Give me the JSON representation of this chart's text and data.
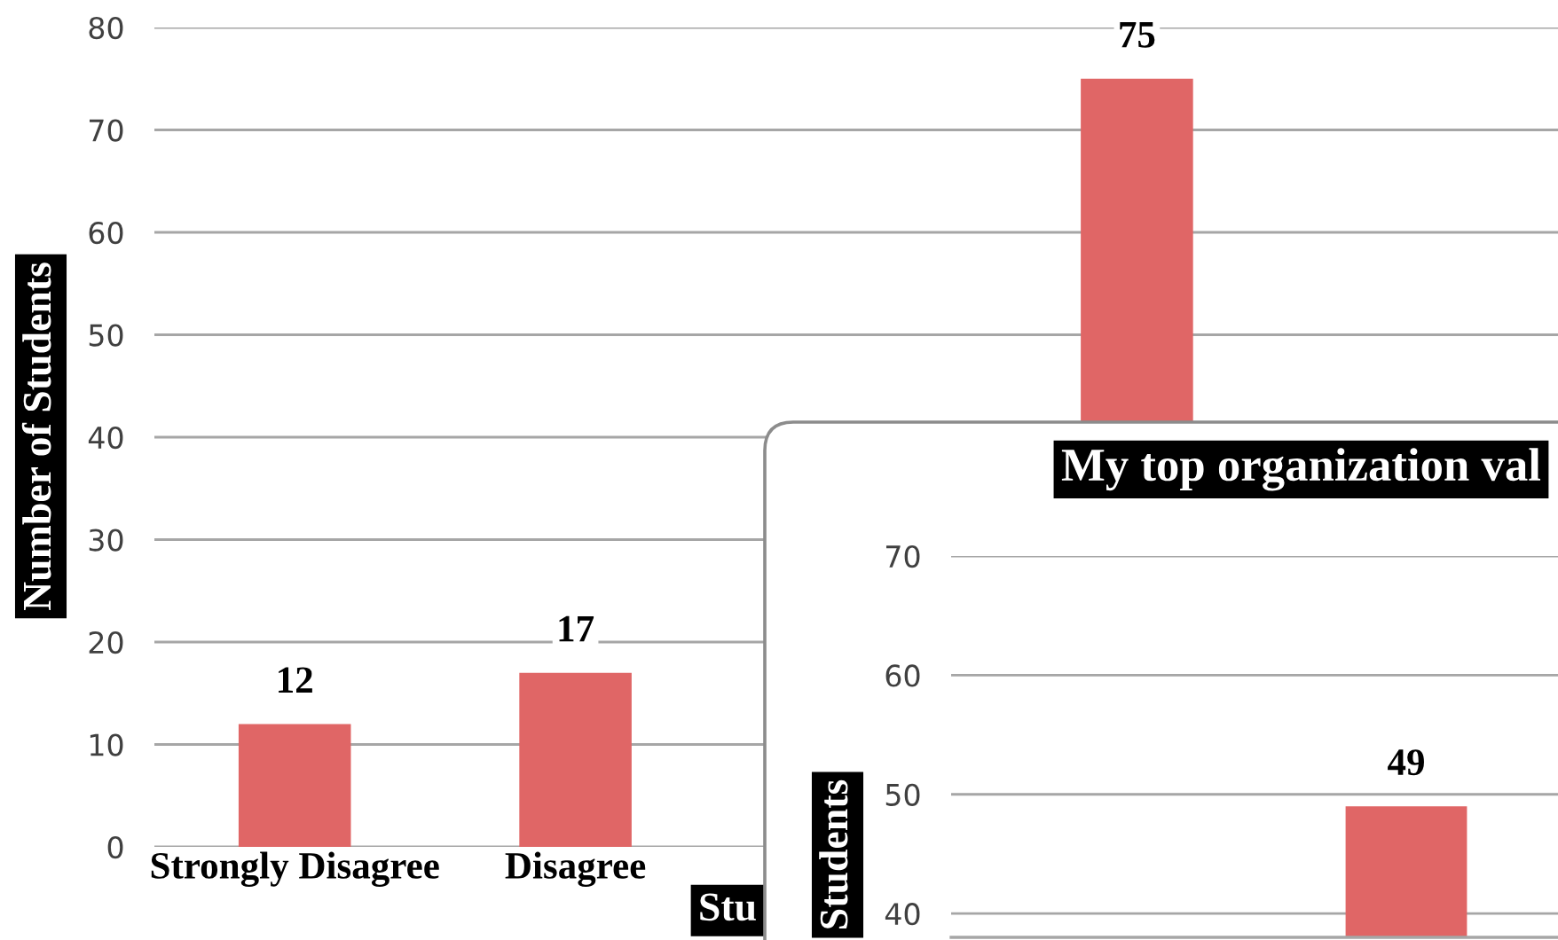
{
  "chart_data": [
    {
      "type": "bar",
      "categories": [
        "Strongly Disagree",
        "Disagree",
        null,
        null,
        null
      ],
      "values": [
        12,
        17,
        null,
        75,
        null
      ],
      "color": "#e06666",
      "ylim": [
        0,
        80
      ],
      "yticks": [
        0,
        10,
        20,
        30,
        40,
        50,
        60,
        70,
        80
      ],
      "ylabel": "Number of Students",
      "xlabel": "Stu",
      "data_labels": true,
      "grid": "y"
    },
    {
      "type": "bar",
      "title": "My top organization val",
      "categories": [
        null,
        null
      ],
      "values": [
        null,
        49
      ],
      "color": "#e06666",
      "ylim": [
        38,
        70
      ],
      "yticks": [
        40,
        50,
        60,
        70
      ],
      "ylabel": "Students",
      "data_labels": true,
      "grid": "y"
    }
  ]
}
